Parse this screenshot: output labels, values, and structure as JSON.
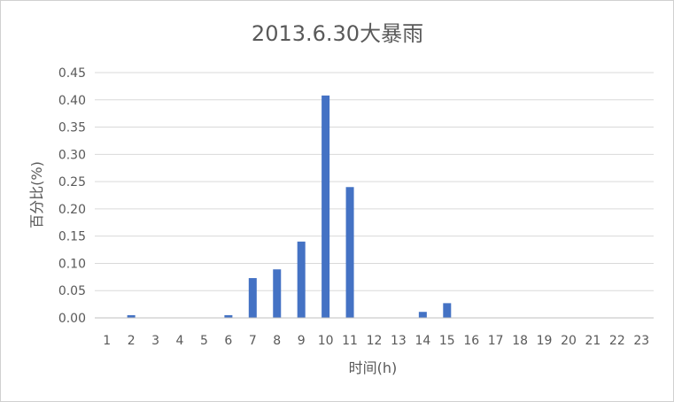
{
  "chart_data": {
    "type": "bar",
    "title": "2013.6.30大暴雨",
    "xlabel": "时间(h)",
    "ylabel": "百分比(%)",
    "ylim": [
      0,
      0.45
    ],
    "y_ticks": [
      "0.00",
      "0.05",
      "0.10",
      "0.15",
      "0.20",
      "0.25",
      "0.30",
      "0.35",
      "0.40",
      "0.45"
    ],
    "grid": true,
    "legend": "none",
    "categories": [
      "1",
      "2",
      "3",
      "4",
      "5",
      "6",
      "7",
      "8",
      "9",
      "10",
      "11",
      "12",
      "13",
      "14",
      "15",
      "16",
      "17",
      "18",
      "19",
      "20",
      "21",
      "22",
      "23"
    ],
    "values": [
      0,
      0.005,
      0,
      0,
      0,
      0.005,
      0.073,
      0.089,
      0.14,
      0.408,
      0.24,
      0,
      0,
      0.011,
      0.027,
      0,
      0,
      0,
      0,
      0,
      0,
      0,
      0
    ],
    "colors": {
      "bar": "#4472c4",
      "grid": "#d9d9d9",
      "axis": "#bfbfbf",
      "text": "#595959"
    }
  }
}
